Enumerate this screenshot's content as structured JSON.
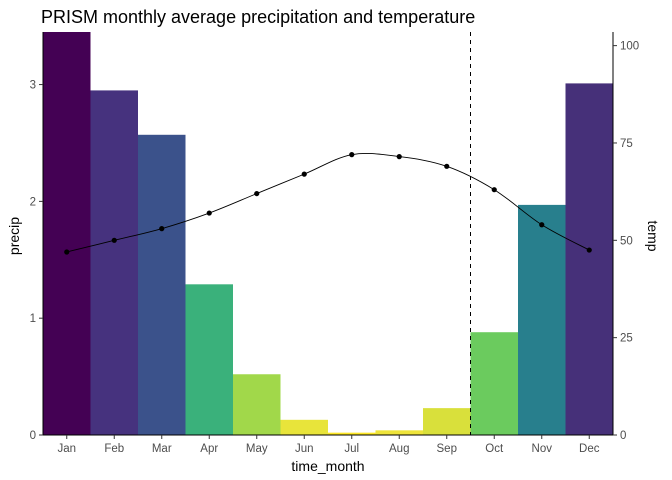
{
  "chart_data": {
    "type": "bar",
    "title": "PRISM monthly average precipitation and temperature",
    "xlabel": "time_month",
    "ylabel": "precip",
    "y2label": "temp",
    "categories": [
      "Jan",
      "Feb",
      "Mar",
      "Apr",
      "May",
      "Jun",
      "Jul",
      "Aug",
      "Sep",
      "Oct",
      "Nov",
      "Dec"
    ],
    "series": [
      {
        "type": "bar",
        "values": [
          3.45,
          2.95,
          2.57,
          1.29,
          0.52,
          0.13,
          0.02,
          0.04,
          0.23,
          0.88,
          1.97,
          3.01
        ],
        "colors": [
          "#440154",
          "#46327e",
          "#3b528b",
          "#3ab17b",
          "#a1d84a",
          "#e8e43a",
          "#fde725",
          "#eee43a",
          "#d9e03b",
          "#6bcb5e",
          "#287f8d",
          "#463079"
        ]
      },
      {
        "type": "line",
        "axis": "right",
        "values": [
          47,
          50,
          53,
          57,
          62,
          67,
          72,
          71.5,
          69,
          63,
          54,
          47.5
        ],
        "color": "#000000"
      }
    ],
    "ylim": [
      0,
      3.45
    ],
    "y2lim": [
      0,
      103.5
    ],
    "yticks": [
      0,
      1,
      2,
      3
    ],
    "y2ticks": [
      0,
      25,
      50,
      75,
      100
    ],
    "vline": {
      "after_category": "Sep",
      "style": "dashed",
      "color": "#000000"
    },
    "grid": false,
    "legend": "none"
  }
}
